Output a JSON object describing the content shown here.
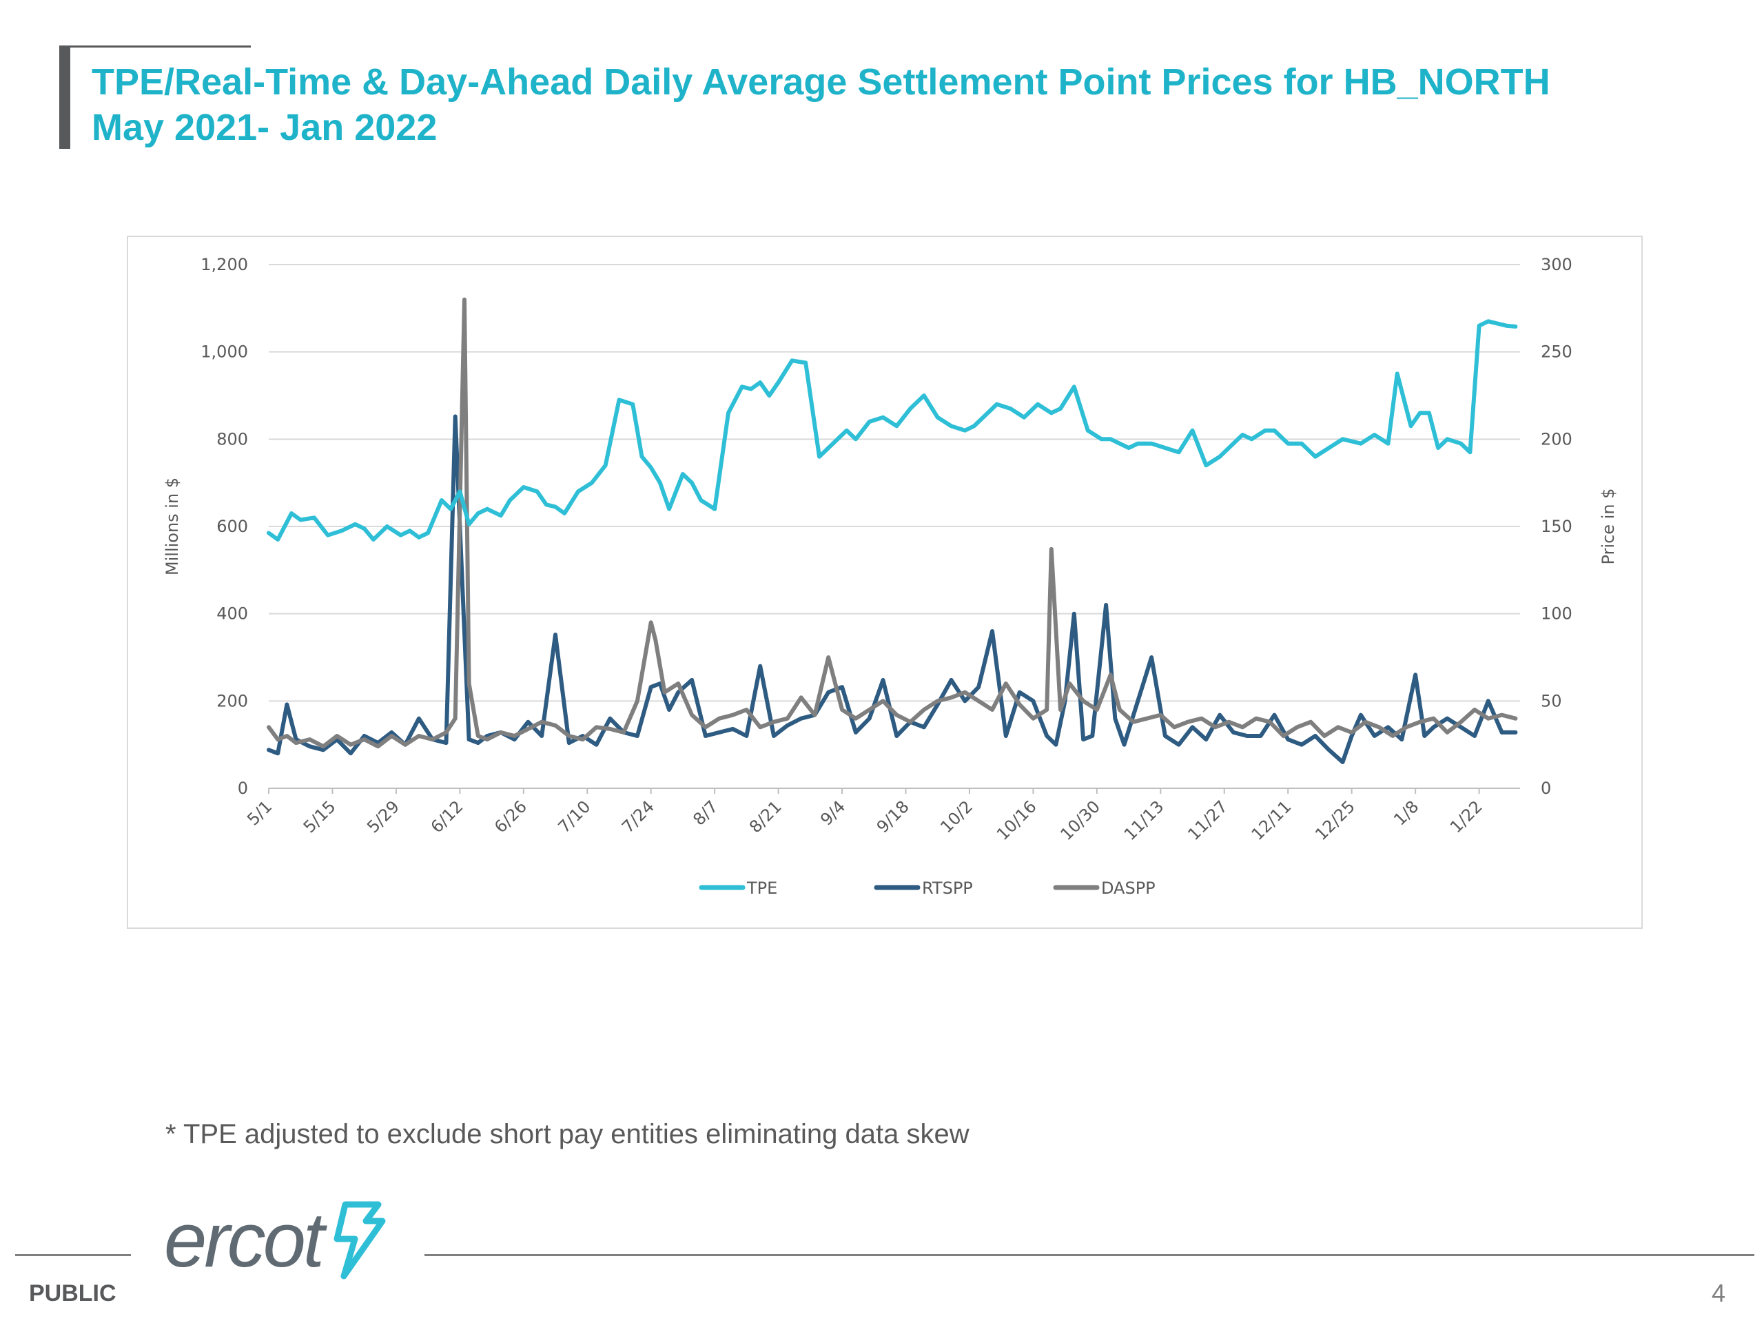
{
  "slide": {
    "title_line1": "TPE/Real-Time & Day-Ahead Daily Average Settlement Point Prices for HB_NORTH",
    "title_line2": "May 2021- Jan 2022",
    "footnote": "* TPE adjusted to exclude short pay entities eliminating data skew",
    "footer_label": "PUBLIC",
    "page_number": "4",
    "logo_text": "ercot",
    "title_color": "#1fb3c9"
  },
  "chart_data": {
    "type": "line",
    "title": "",
    "xlabel": "",
    "ylabel": "Millions in $",
    "y2label": "Price in $",
    "ylim": [
      0,
      1200
    ],
    "y2lim": [
      0,
      300
    ],
    "yticks": [
      "0",
      "200",
      "400",
      "600",
      "800",
      "1,000",
      "1,200"
    ],
    "y2ticks": [
      "0",
      "50",
      "100",
      "150",
      "200",
      "250",
      "300"
    ],
    "xticks": [
      "5/1",
      "5/15",
      "5/29",
      "6/12",
      "6/26",
      "7/10",
      "7/24",
      "8/7",
      "8/21",
      "9/4",
      "9/18",
      "10/2",
      "10/16",
      "10/30",
      "11/13",
      "11/27",
      "12/11",
      "12/25",
      "1/8",
      "1/22"
    ],
    "grid": "horizontal",
    "legend_position": "bottom",
    "series": [
      {
        "name": "TPE",
        "axis": "left",
        "color": "#2ebfd6",
        "x": [
          "5/1",
          "5/3",
          "5/6",
          "5/8",
          "5/11",
          "5/14",
          "5/17",
          "5/20",
          "5/22",
          "5/24",
          "5/27",
          "5/30",
          "6/1",
          "6/3",
          "6/5",
          "6/8",
          "6/10",
          "6/12",
          "6/14",
          "6/16",
          "6/18",
          "6/21",
          "6/23",
          "6/26",
          "6/29",
          "7/1",
          "7/3",
          "7/5",
          "7/8",
          "7/11",
          "7/14",
          "7/17",
          "7/20",
          "7/22",
          "7/24",
          "7/26",
          "7/28",
          "7/31",
          "8/2",
          "8/4",
          "8/7",
          "8/10",
          "8/13",
          "8/15",
          "8/17",
          "8/19",
          "8/21",
          "8/24",
          "8/27",
          "8/30",
          "9/2",
          "9/3",
          "9/5",
          "9/7",
          "9/10",
          "9/13",
          "9/16",
          "9/19",
          "9/22",
          "9/25",
          "9/28",
          "10/1",
          "10/3",
          "10/5",
          "10/8",
          "10/11",
          "10/14",
          "10/17",
          "10/20",
          "10/22",
          "10/25",
          "10/28",
          "10/31",
          "11/2",
          "11/4",
          "11/6",
          "11/8",
          "11/11",
          "11/14",
          "11/17",
          "11/20",
          "11/23",
          "11/26",
          "11/28",
          "12/1",
          "12/3",
          "12/6",
          "12/8",
          "12/11",
          "12/14",
          "12/17",
          "12/20",
          "12/23",
          "12/27",
          "12/30",
          "1/2",
          "1/4",
          "1/7",
          "1/9",
          "1/11",
          "1/13",
          "1/15",
          "1/18",
          "1/20",
          "1/22",
          "1/24",
          "1/26",
          "1/28",
          "1/30"
        ],
        "values": [
          585,
          570,
          630,
          615,
          620,
          580,
          590,
          605,
          595,
          570,
          600,
          580,
          590,
          575,
          585,
          660,
          640,
          680,
          605,
          630,
          640,
          625,
          660,
          690,
          680,
          650,
          645,
          630,
          680,
          700,
          740,
          890,
          880,
          760,
          735,
          700,
          640,
          720,
          700,
          660,
          640,
          860,
          920,
          915,
          930,
          900,
          930,
          980,
          975,
          760,
          790,
          800,
          820,
          800,
          840,
          850,
          830,
          870,
          900,
          850,
          830,
          820,
          830,
          850,
          880,
          870,
          850,
          880,
          860,
          870,
          920,
          820,
          800,
          800,
          790,
          780,
          790,
          790,
          780,
          770,
          820,
          740,
          760,
          780,
          810,
          800,
          820,
          820,
          790,
          790,
          760,
          780,
          800,
          790,
          810,
          790,
          950,
          830,
          860,
          860,
          780,
          800,
          790,
          770,
          1060,
          1070,
          1065,
          1060,
          1058
        ],
        "_note": ""
      },
      {
        "name": "RTSPP",
        "axis": "right",
        "color": "#2e5b82",
        "x": [
          "5/1",
          "5/3",
          "5/5",
          "5/7",
          "5/10",
          "5/13",
          "5/16",
          "5/19",
          "5/22",
          "5/25",
          "5/28",
          "5/31",
          "6/3",
          "6/6",
          "6/9",
          "6/11",
          "6/12",
          "6/14",
          "6/16",
          "6/18",
          "6/21",
          "6/24",
          "6/27",
          "6/30",
          "7/3",
          "7/6",
          "7/9",
          "7/12",
          "7/15",
          "7/18",
          "7/21",
          "7/24",
          "7/26",
          "7/28",
          "7/30",
          "8/2",
          "8/5",
          "8/8",
          "8/11",
          "8/14",
          "8/17",
          "8/20",
          "8/23",
          "8/26",
          "8/29",
          "9/1",
          "9/4",
          "9/7",
          "9/10",
          "9/13",
          "9/16",
          "9/19",
          "9/22",
          "9/25",
          "9/28",
          "10/1",
          "10/4",
          "10/7",
          "10/10",
          "10/13",
          "10/16",
          "10/19",
          "10/21",
          "10/23",
          "10/25",
          "10/27",
          "10/29",
          "11/1",
          "11/3",
          "11/5",
          "11/8",
          "11/11",
          "11/14",
          "11/17",
          "11/20",
          "11/23",
          "11/26",
          "11/29",
          "12/2",
          "12/5",
          "12/8",
          "12/11",
          "12/14",
          "12/17",
          "12/20",
          "12/23",
          "12/25",
          "12/27",
          "12/30",
          "1/2",
          "1/5",
          "1/8",
          "1/10",
          "1/12",
          "1/15",
          "1/18",
          "1/21",
          "1/24",
          "1/27",
          "1/30"
        ],
        "values": [
          22,
          20,
          48,
          28,
          24,
          22,
          28,
          20,
          30,
          26,
          32,
          25,
          40,
          28,
          26,
          213,
          150,
          28,
          26,
          30,
          32,
          28,
          38,
          30,
          88,
          26,
          30,
          25,
          40,
          32,
          30,
          58,
          60,
          45,
          55,
          62,
          30,
          32,
          34,
          30,
          70,
          30,
          36,
          40,
          42,
          55,
          58,
          32,
          40,
          62,
          30,
          38,
          35,
          48,
          62,
          50,
          58,
          90,
          30,
          55,
          50,
          30,
          25,
          50,
          100,
          28,
          30,
          105,
          40,
          25,
          50,
          75,
          30,
          25,
          35,
          28,
          42,
          32,
          30,
          30,
          42,
          28,
          25,
          30,
          22,
          15,
          30,
          42,
          30,
          35,
          28,
          65,
          30,
          35,
          40,
          35,
          30,
          50,
          32,
          32
        ],
        "_note": ""
      },
      {
        "name": "DASPP",
        "axis": "right",
        "color": "#7f7f7f",
        "x": [
          "5/1",
          "5/3",
          "5/5",
          "5/7",
          "5/10",
          "5/13",
          "5/16",
          "5/19",
          "5/22",
          "5/25",
          "5/28",
          "5/31",
          "6/3",
          "6/6",
          "6/9",
          "6/11",
          "6/13",
          "6/14",
          "6/16",
          "6/18",
          "6/21",
          "6/24",
          "6/27",
          "6/30",
          "7/3",
          "7/6",
          "7/9",
          "7/12",
          "7/15",
          "7/18",
          "7/21",
          "7/24",
          "7/25",
          "7/27",
          "7/30",
          "8/2",
          "8/5",
          "8/8",
          "8/11",
          "8/14",
          "8/17",
          "8/20",
          "8/23",
          "8/26",
          "8/29",
          "9/1",
          "9/4",
          "9/7",
          "9/10",
          "9/13",
          "9/16",
          "9/19",
          "9/22",
          "9/25",
          "9/28",
          "10/1",
          "10/4",
          "10/7",
          "10/10",
          "10/13",
          "10/16",
          "10/19",
          "10/20",
          "10/22",
          "10/24",
          "10/27",
          "10/30",
          "11/2",
          "11/4",
          "11/7",
          "11/10",
          "11/13",
          "11/16",
          "11/19",
          "11/22",
          "11/25",
          "11/28",
          "12/1",
          "12/4",
          "12/7",
          "12/10",
          "12/13",
          "12/16",
          "12/19",
          "12/22",
          "12/25",
          "12/28",
          "12/31",
          "1/3",
          "1/6",
          "1/9",
          "1/12",
          "1/15",
          "1/18",
          "1/21",
          "1/24",
          "1/27",
          "1/30"
        ],
        "values": [
          35,
          28,
          30,
          26,
          28,
          24,
          30,
          25,
          28,
          24,
          30,
          25,
          30,
          28,
          32,
          40,
          280,
          60,
          30,
          28,
          32,
          30,
          34,
          38,
          36,
          30,
          28,
          35,
          34,
          32,
          50,
          95,
          85,
          55,
          60,
          42,
          35,
          40,
          42,
          45,
          35,
          38,
          40,
          52,
          42,
          75,
          45,
          40,
          45,
          50,
          42,
          38,
          45,
          50,
          52,
          55,
          50,
          45,
          60,
          48,
          40,
          45,
          137,
          45,
          60,
          50,
          45,
          65,
          45,
          38,
          40,
          42,
          35,
          38,
          40,
          35,
          38,
          35,
          40,
          38,
          30,
          35,
          38,
          30,
          35,
          32,
          38,
          35,
          30,
          35,
          38,
          40,
          32,
          38,
          45,
          40,
          42,
          40
        ]
      }
    ]
  }
}
